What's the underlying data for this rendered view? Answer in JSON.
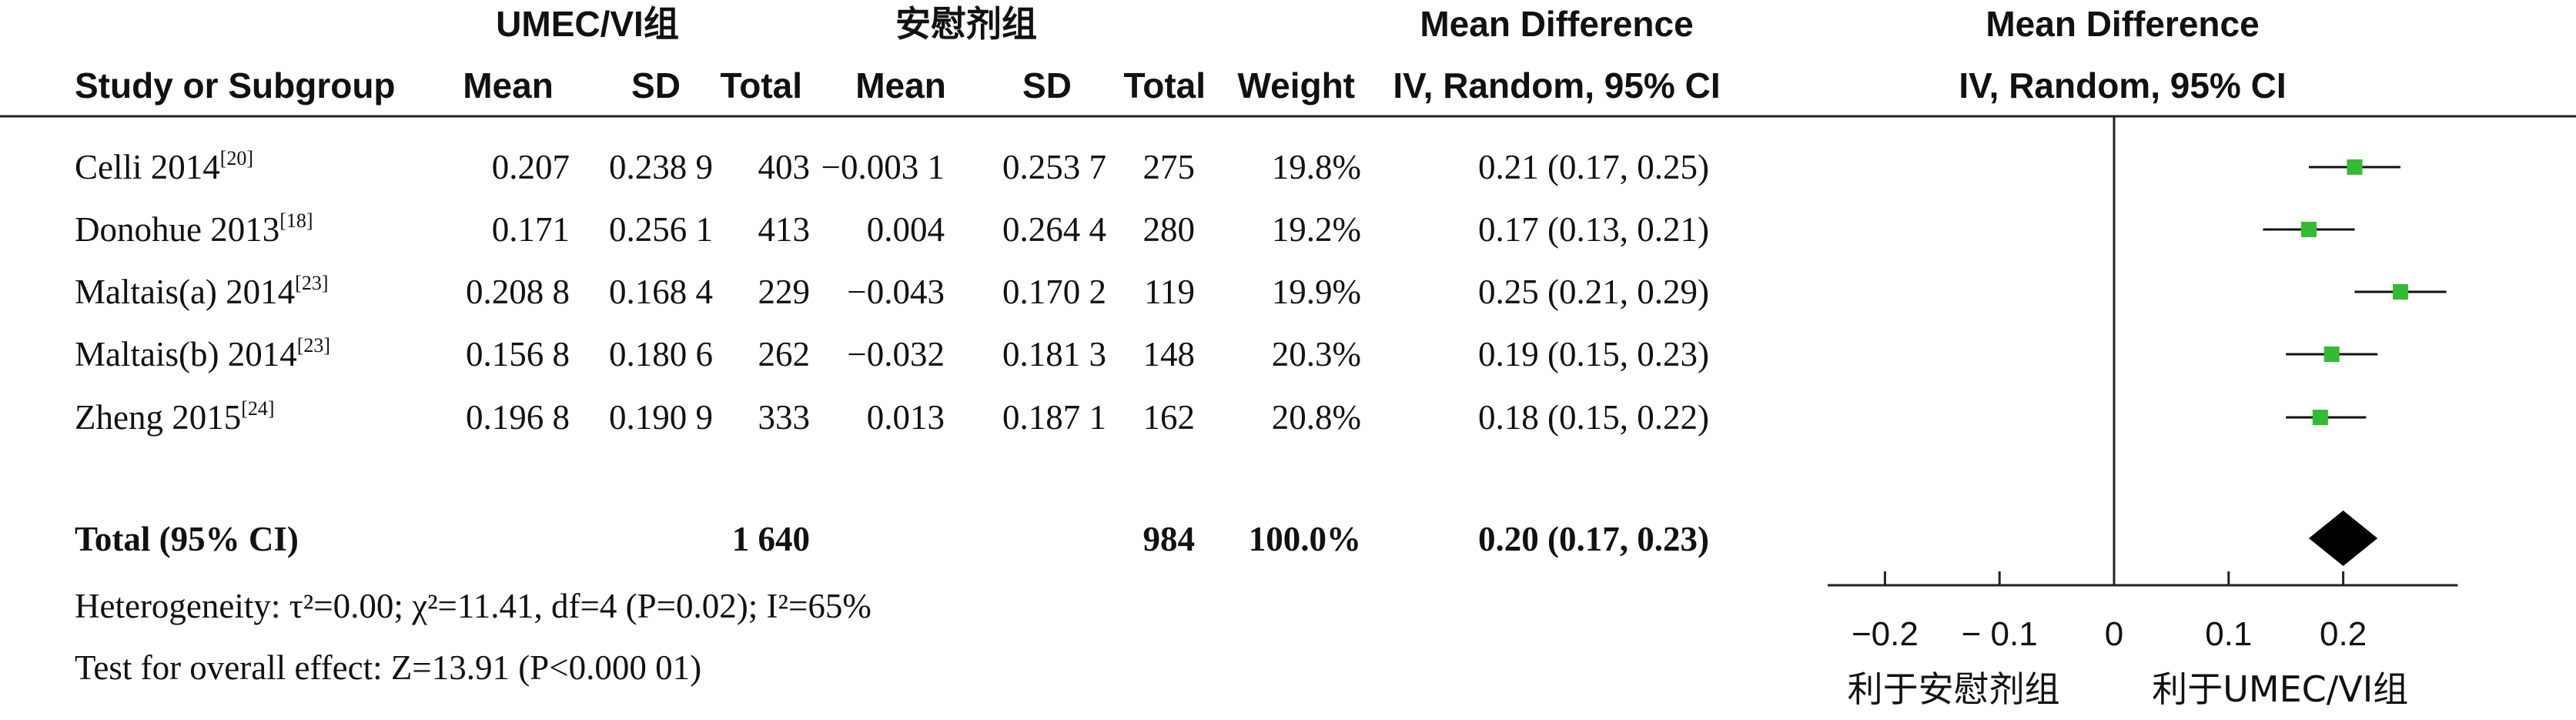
{
  "headers": {
    "group1": "UMEC/VI组",
    "group2": "安慰剂组",
    "md_top": "Mean Difference",
    "md_top_plot": "Mean Difference",
    "study": "Study or Subgroup",
    "mean1": "Mean",
    "sd1": "SD",
    "total1": "Total",
    "mean2": "Mean",
    "sd2": "SD",
    "total2": "Total",
    "weight": "Weight",
    "md_bottom": "IV, Random, 95% CI",
    "md_bottom_plot": "IV, Random, 95% CI"
  },
  "studies": [
    {
      "name": "Celli 2014",
      "ref": "[20]",
      "mean1": "0.207",
      "sd1": "0.238 9",
      "total1": "403",
      "mean2": "−0.003 1",
      "sd2": "0.253 7",
      "total2": "275",
      "weight": "19.8%",
      "ci": "0.21 (0.17, 0.25)"
    },
    {
      "name": "Donohue 2013",
      "ref": "[18]",
      "mean1": "0.171",
      "sd1": "0.256 1",
      "total1": "413",
      "mean2": "0.004",
      "sd2": "0.264 4",
      "total2": "280",
      "weight": "19.2%",
      "ci": "0.17 (0.13, 0.21)"
    },
    {
      "name": "Maltais(a) 2014",
      "ref": "[23]",
      "mean1": "0.208 8",
      "sd1": "0.168 4",
      "total1": "229",
      "mean2": "−0.043",
      "sd2": "0.170 2",
      "total2": "119",
      "weight": "19.9%",
      "ci": "0.25 (0.21, 0.29)"
    },
    {
      "name": "Maltais(b) 2014",
      "ref": "[23]",
      "mean1": "0.156 8",
      "sd1": "0.180 6",
      "total1": "262",
      "mean2": "−0.032",
      "sd2": "0.181 3",
      "total2": "148",
      "weight": "20.3%",
      "ci": "0.19 (0.15, 0.23)"
    },
    {
      "name": "Zheng 2015",
      "ref": "[24]",
      "mean1": "0.196 8",
      "sd1": "0.190 9",
      "total1": "333",
      "mean2": "0.013",
      "sd2": "0.187 1",
      "total2": "162",
      "weight": "20.8%",
      "ci": "0.18 (0.15, 0.22)"
    }
  ],
  "total": {
    "label": "Total (95% CI)",
    "total1": "1 640",
    "total2": "984",
    "weight": "100.0%",
    "ci": "0.20 (0.17, 0.23)"
  },
  "footer": {
    "heterogeneity": "Heterogeneity: τ²=0.00; χ²=11.41, df=4 (P=0.02); I²=65%",
    "overall": "Test for overall effect: Z=13.91 (P<0.000 01)"
  },
  "chart_data": {
    "type": "scatter",
    "subtype": "forest-plot",
    "xlim": [
      -0.25,
      0.3
    ],
    "xticks": [
      -0.2,
      -0.1,
      0,
      0.1,
      0.2
    ],
    "xtick_labels": [
      "−0.2",
      "− 0.1",
      "0",
      "0.1",
      "0.2"
    ],
    "favors_left": "利于安慰剂组",
    "favors_right": "利于UMEC/VI组",
    "marker_color": "#33bb33",
    "diamond_color": "#000000",
    "series": [
      {
        "label": "Celli 2014",
        "estimate": 0.21,
        "lower": 0.17,
        "upper": 0.25,
        "weight": 19.8
      },
      {
        "label": "Donohue 2013",
        "estimate": 0.17,
        "lower": 0.13,
        "upper": 0.21,
        "weight": 19.2
      },
      {
        "label": "Maltais(a) 2014",
        "estimate": 0.25,
        "lower": 0.21,
        "upper": 0.29,
        "weight": 19.9
      },
      {
        "label": "Maltais(b) 2014",
        "estimate": 0.19,
        "lower": 0.15,
        "upper": 0.23,
        "weight": 20.3
      },
      {
        "label": "Zheng 2015",
        "estimate": 0.18,
        "lower": 0.15,
        "upper": 0.22,
        "weight": 20.8
      }
    ],
    "pooled": {
      "estimate": 0.2,
      "lower": 0.17,
      "upper": 0.23
    }
  }
}
